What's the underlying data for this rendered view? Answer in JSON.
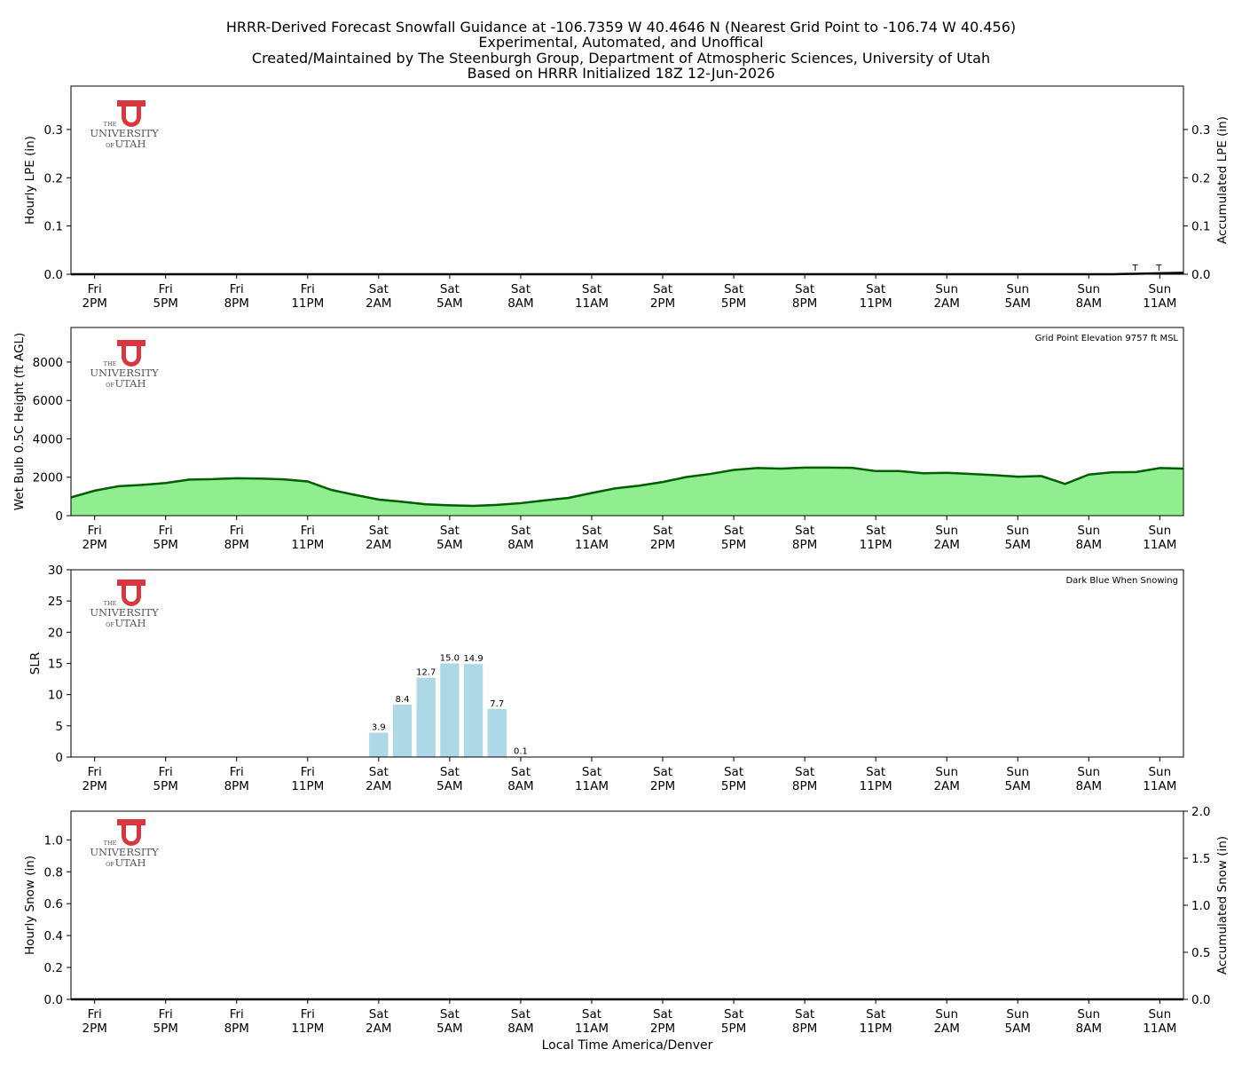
{
  "title_lines": [
    "HRRR-Derived Forecast Snowfall Guidance at -106.7359 W 40.4646 N (Nearest Grid Point to -106.74 W 40.456)",
    "Experimental, Automated, and Unoffical",
    "Created/Maintained by The Steenburgh Group, Department of Atmospheric Sciences, University of Utah",
    "Based on HRRR Initialized 18Z 12-Jun-2026"
  ],
  "xlabel": "Local Time America/Denver",
  "logo": {
    "line1": "THE",
    "line2": "UNIVERSITY",
    "line3a": "OF",
    "line3b": "UTAH",
    "color": "#d9373f"
  },
  "x_ticks": [
    {
      "day": "Fri",
      "time": "2PM",
      "hour": 1
    },
    {
      "day": "Fri",
      "time": "5PM",
      "hour": 4
    },
    {
      "day": "Fri",
      "time": "8PM",
      "hour": 7
    },
    {
      "day": "Fri",
      "time": "11PM",
      "hour": 10
    },
    {
      "day": "Sat",
      "time": "2AM",
      "hour": 13
    },
    {
      "day": "Sat",
      "time": "5AM",
      "hour": 16
    },
    {
      "day": "Sat",
      "time": "8AM",
      "hour": 19
    },
    {
      "day": "Sat",
      "time": "11AM",
      "hour": 22
    },
    {
      "day": "Sat",
      "time": "2PM",
      "hour": 25
    },
    {
      "day": "Sat",
      "time": "5PM",
      "hour": 28
    },
    {
      "day": "Sat",
      "time": "8PM",
      "hour": 31
    },
    {
      "day": "Sat",
      "time": "11PM",
      "hour": 34
    },
    {
      "day": "Sun",
      "time": "2AM",
      "hour": 37
    },
    {
      "day": "Sun",
      "time": "5AM",
      "hour": 40
    },
    {
      "day": "Sun",
      "time": "8AM",
      "hour": 43
    },
    {
      "day": "Sun",
      "time": "11AM",
      "hour": 46
    }
  ],
  "chart_data": [
    {
      "type": "bar",
      "ylabel": "Hourly LPE (in)",
      "ylabel_right": "Accumulated LPE (in)",
      "ylim": [
        0,
        0.39
      ],
      "yticks": [
        0.0,
        0.1,
        0.2,
        0.3
      ],
      "yticks_right": [
        0.0,
        0.1,
        0.2,
        0.3
      ],
      "hours": [
        45,
        46
      ],
      "hourly_lpe": [
        0.001,
        0.001
      ],
      "hourly_labels": [
        "T",
        "T"
      ],
      "accumulated_lpe": {
        "hours": [
          0,
          44,
          45,
          46,
          47
        ],
        "values": [
          0,
          0,
          0.001,
          0.002,
          0.003
        ]
      },
      "color": "#000000"
    },
    {
      "type": "area",
      "ylabel": "Wet Bulb 0.5C Height (ft AGL)",
      "annotation": "Grid Point Elevation 9757 ft MSL",
      "ylim": [
        0,
        9800
      ],
      "yticks": [
        0,
        2000,
        4000,
        6000,
        8000
      ],
      "hours": [
        0,
        1,
        2,
        3,
        4,
        5,
        6,
        7,
        8,
        9,
        10,
        11,
        12,
        13,
        14,
        15,
        16,
        17,
        18,
        19,
        20,
        21,
        22,
        23,
        24,
        25,
        26,
        27,
        28,
        29,
        30,
        31,
        32,
        33,
        34,
        35,
        36,
        37,
        38,
        39,
        40,
        41,
        42,
        43,
        44,
        45,
        46,
        47
      ],
      "values": [
        950,
        1300,
        1530,
        1600,
        1700,
        1880,
        1900,
        1950,
        1930,
        1890,
        1780,
        1340,
        1080,
        840,
        720,
        590,
        540,
        510,
        560,
        650,
        790,
        920,
        1180,
        1420,
        1560,
        1750,
        2010,
        2170,
        2380,
        2480,
        2450,
        2500,
        2500,
        2490,
        2320,
        2320,
        2210,
        2230,
        2170,
        2110,
        2030,
        2060,
        1650,
        2140,
        2260,
        2270,
        2480,
        2450
      ],
      "line_color": "#005f00",
      "fill_color": "#90ee90"
    },
    {
      "type": "bar",
      "ylabel": "SLR",
      "annotation": "Dark Blue When Snowing",
      "ylim": [
        0,
        30
      ],
      "yticks": [
        0,
        5,
        10,
        15,
        20,
        25,
        30
      ],
      "hours": [
        13,
        14,
        15,
        16,
        17,
        18,
        19
      ],
      "values": [
        3.9,
        8.4,
        12.7,
        15.0,
        14.9,
        7.7,
        0.1
      ],
      "labels": [
        "3.9",
        "8.4",
        "12.7",
        "15.0",
        "14.9",
        "7.7",
        "0.1"
      ],
      "color": "#add8e6",
      "snow_color": "#00008b"
    },
    {
      "type": "bar",
      "ylabel": "Hourly Snow (in)",
      "ylabel_right": "Accumulated Snow (in)",
      "ylim": [
        0,
        1.18
      ],
      "yticks": [
        0.0,
        0.2,
        0.4,
        0.6,
        0.8,
        1.0
      ],
      "ylim_right": [
        0,
        2.0
      ],
      "yticks_right": [
        0.0,
        0.5,
        1.0,
        1.5,
        2.0
      ],
      "hours": [],
      "values": [],
      "accumulated_snow": {
        "hours": [
          0,
          47
        ],
        "values": [
          0,
          0
        ]
      }
    }
  ]
}
